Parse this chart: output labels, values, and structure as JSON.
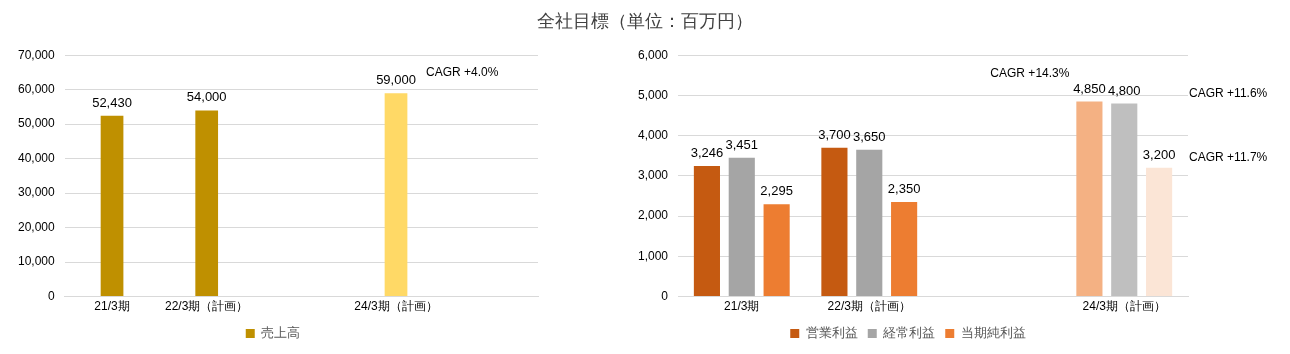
{
  "chart_data": [
    {
      "type": "bar",
      "title": "全社目標（単位：百万円）",
      "categories": [
        "21/3期",
        "22/3期（計画）",
        null,
        "24/3期（計画）",
        null
      ],
      "series": [
        {
          "name": "売上高",
          "colors": [
            "#bf9000",
            "#bf9000",
            null,
            "#ffd966",
            null
          ],
          "values": [
            52430,
            54000,
            null,
            59000,
            null
          ],
          "value_labels": [
            "52,430",
            "54,000",
            null,
            "59,000",
            null
          ]
        }
      ],
      "ylim": [
        0,
        70000
      ],
      "yticks": [
        {
          "value": 0,
          "label": "0"
        },
        {
          "value": 10000,
          "label": "10,000"
        },
        {
          "value": 20000,
          "label": "20,000"
        },
        {
          "value": 30000,
          "label": "30,000"
        },
        {
          "value": 40000,
          "label": "40,000"
        },
        {
          "value": 50000,
          "label": "50,000"
        },
        {
          "value": 60000,
          "label": "60,000"
        },
        {
          "value": 70000,
          "label": "70,000"
        }
      ],
      "grid": "y",
      "legend": "bottom",
      "annotations": [
        "CAGR +4.0%"
      ]
    },
    {
      "type": "bar",
      "categories": [
        "21/3期",
        "22/3期（計画）",
        null,
        "24/3期（計画）"
      ],
      "series": [
        {
          "name": "営業利益",
          "colors": [
            "#c55a11",
            "#c55a11",
            null,
            "#f4b183"
          ],
          "values": [
            3246,
            3700,
            null,
            4850
          ],
          "value_labels": [
            "3,246",
            "3,700",
            null,
            "4,850"
          ]
        },
        {
          "name": "経常利益",
          "colors": [
            "#a5a5a5",
            "#a5a5a5",
            null,
            "#bfbfbf"
          ],
          "values": [
            3451,
            3650,
            null,
            4800
          ],
          "value_labels": [
            "3,451",
            "3,650",
            null,
            "4,800"
          ]
        },
        {
          "name": "当期純利益",
          "colors": [
            "#ed7d31",
            "#ed7d31",
            null,
            "#fbe5d6"
          ],
          "values": [
            2295,
            2350,
            null,
            3200
          ],
          "value_labels": [
            "2,295",
            "2,350",
            null,
            "3,200"
          ]
        }
      ],
      "ylim": [
        0,
        6000
      ],
      "yticks": [
        {
          "value": 0,
          "label": "0"
        },
        {
          "value": 1000,
          "label": "1,000"
        },
        {
          "value": 2000,
          "label": "2,000"
        },
        {
          "value": 3000,
          "label": "3,000"
        },
        {
          "value": 4000,
          "label": "4,000"
        },
        {
          "value": 5000,
          "label": "5,000"
        },
        {
          "value": 6000,
          "label": "6,000"
        }
      ],
      "grid": "y",
      "legend": "bottom",
      "annotations": [
        "CAGR +14.3%",
        "CAGR +11.6%",
        "CAGR +11.7%"
      ]
    }
  ]
}
